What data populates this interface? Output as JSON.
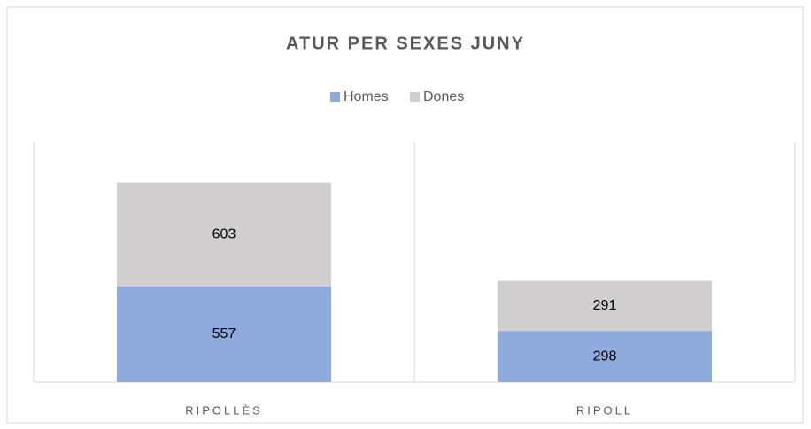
{
  "chart_data": {
    "type": "stacked_bar",
    "title": "ATUR PER SEXES JUNY",
    "categories": [
      "RIPOLLÈS",
      "RIPOLL"
    ],
    "series": [
      {
        "name": "Homes",
        "color": "#8faadc",
        "values": [
          557,
          298
        ]
      },
      {
        "name": "Dones",
        "color": "#d0cece",
        "values": [
          603,
          291
        ]
      }
    ],
    "ylim": [
      0,
      1400
    ],
    "legend": "top"
  }
}
